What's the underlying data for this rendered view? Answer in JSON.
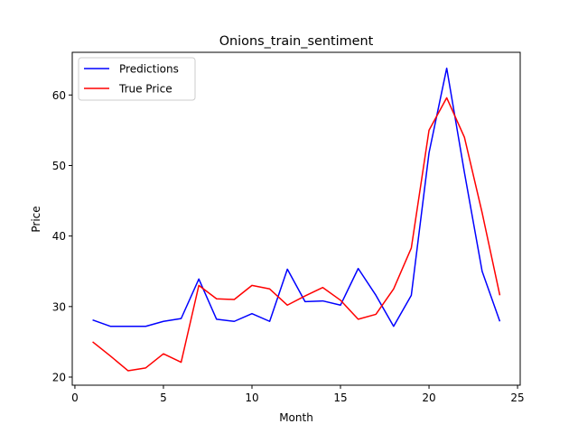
{
  "chart_data": {
    "type": "line",
    "title": "Onions_train_sentiment",
    "xlabel": "Month",
    "ylabel": "Price",
    "xlim": [
      -0.15,
      25.15
    ],
    "ylim": [
      18.85,
      66.05
    ],
    "xticks": [
      0,
      5,
      10,
      15,
      20,
      25
    ],
    "yticks": [
      20,
      30,
      40,
      50,
      60
    ],
    "grid": false,
    "legend_position": "top-left",
    "x": [
      1,
      2,
      3,
      4,
      5,
      6,
      7,
      8,
      9,
      10,
      11,
      12,
      13,
      14,
      15,
      16,
      17,
      18,
      19,
      20,
      21,
      22,
      23,
      24
    ],
    "series": [
      {
        "name": "Predictions",
        "color": "#0000ff",
        "values": [
          28.1,
          27.2,
          27.2,
          27.2,
          27.9,
          28.3,
          33.9,
          28.2,
          27.9,
          29.0,
          27.9,
          35.3,
          30.7,
          30.8,
          30.2,
          35.4,
          31.6,
          27.2,
          31.6,
          51.8,
          63.8,
          49.0,
          35.0,
          27.9
        ]
      },
      {
        "name": "True Price",
        "color": "#ff0000",
        "values": [
          25.0,
          23.0,
          20.9,
          21.3,
          23.3,
          22.1,
          33.0,
          31.1,
          31.0,
          33.0,
          32.5,
          30.2,
          31.5,
          32.7,
          30.9,
          28.2,
          28.9,
          32.5,
          38.3,
          55.0,
          59.6,
          54.0,
          43.3,
          31.6
        ]
      }
    ]
  }
}
